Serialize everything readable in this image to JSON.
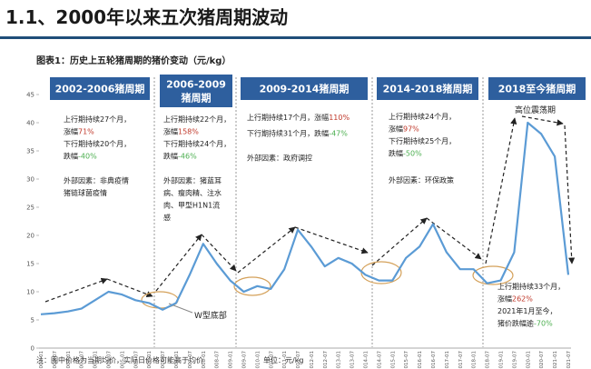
{
  "title": "1.1、2000年以来五次猪周期波动",
  "figure_caption": "图表1：历史上五轮猪周期的猪价变动（元/kg）",
  "chart_data": {
    "type": "line",
    "color": "#5b9bd5",
    "categories": [
      "2002-01",
      "2002-07",
      "2003-01",
      "2003-07",
      "2004-01",
      "2004-07",
      "2005-01",
      "2005-07",
      "2006-01",
      "2006-07",
      "2007-01",
      "2007-07",
      "2008-01",
      "2008-07",
      "2009-01",
      "2009-07",
      "2010-01",
      "2010-07",
      "2011-01",
      "2011-07",
      "2012-01",
      "2012-07",
      "2013-01",
      "2013-07",
      "2014-01",
      "2014-07",
      "2015-01",
      "2015-07",
      "2016-01",
      "2016-07",
      "2017-01",
      "2017-07",
      "2018-01",
      "2018-07",
      "2019-01",
      "2019-07",
      "2020-01",
      "2020-07",
      "2021-01",
      "2021-07"
    ],
    "values": [
      6,
      6.2,
      6.5,
      7,
      8.5,
      10,
      9.5,
      8.5,
      8,
      6.8,
      8,
      13,
      18.5,
      15,
      12,
      10,
      11,
      10.5,
      14,
      21,
      18,
      14.5,
      16,
      15,
      13,
      12,
      12,
      16,
      18,
      22,
      17,
      14,
      14,
      11.5,
      12,
      17,
      40,
      38,
      34,
      13
    ],
    "ylim": [
      0,
      45
    ],
    "yticks": [
      0,
      5,
      10,
      15,
      20,
      25,
      30,
      35,
      40,
      45
    ]
  },
  "cycles": [
    {
      "header": [
        "2002-2006猪周期"
      ],
      "notes": [
        [
          {
            "text": "上行期持续27个月，"
          }
        ],
        [
          {
            "text": "涨幅"
          },
          {
            "text": "71%",
            "color": "#c0392b"
          }
        ],
        [
          {
            "text": "下行期持续20个月，"
          }
        ],
        [
          {
            "text": "跌幅"
          },
          {
            "text": "-40%",
            "color": "#4caf50"
          }
        ],
        [
          {
            "text": "外部因素：非典疫情"
          }
        ],
        [
          {
            "text": "猪链球菌疫情"
          }
        ]
      ]
    },
    {
      "header": [
        "2006-2009",
        "猪周期"
      ],
      "notes": [
        [
          {
            "text": "上行期持续22个月，"
          }
        ],
        [
          {
            "text": "涨幅"
          },
          {
            "text": "158%",
            "color": "#c0392b"
          }
        ],
        [
          {
            "text": "下行期持续24个月，"
          }
        ],
        [
          {
            "text": "跌幅"
          },
          {
            "text": "-46%",
            "color": "#4caf50"
          }
        ],
        [
          {
            "text": "外部因素：猪蓝耳"
          }
        ],
        [
          {
            "text": "病、瘦肉精、注水"
          }
        ],
        [
          {
            "text": "肉、甲型H1N1流"
          }
        ],
        [
          {
            "text": "感"
          }
        ]
      ]
    },
    {
      "header": [
        "2009-2014猪周期"
      ],
      "notes": [
        [
          {
            "text": "上行期持续17个月，涨幅"
          },
          {
            "text": "110%",
            "color": "#c0392b"
          }
        ],
        [
          {
            "text": "下行期持续31个月，跌幅"
          },
          {
            "text": "-47%",
            "color": "#4caf50"
          }
        ],
        [
          {
            "text": "外部因素：政府调控"
          }
        ]
      ]
    },
    {
      "header": [
        "2014-2018猪周期"
      ],
      "notes": [
        [
          {
            "text": "上行期持续24个月，"
          }
        ],
        [
          {
            "text": "涨幅"
          },
          {
            "text": "97%",
            "color": "#c0392b"
          }
        ],
        [
          {
            "text": "下行期持续25个月，"
          }
        ],
        [
          {
            "text": "跌幅"
          },
          {
            "text": "-50%",
            "color": "#4caf50"
          }
        ],
        [
          {
            "text": "外部因素：环保政策"
          }
        ]
      ]
    },
    {
      "header": [
        "2018至今猪周期"
      ],
      "notes": [
        [
          {
            "text": "上行期持续33个月，"
          }
        ],
        [
          {
            "text": "涨幅"
          },
          {
            "text": "262%",
            "color": "#c0392b"
          }
        ],
        [
          {
            "text": "2021年1月至今，"
          }
        ],
        [
          {
            "text": "猪价跌幅逾"
          },
          {
            "text": "-70%",
            "color": "#4caf50"
          }
        ]
      ]
    }
  ],
  "annotations": {
    "w_bottom": "W型底部",
    "high_volatility": "高位震荡期"
  },
  "footnote": "注：图中价格为当期均价，实际日价格可能高于均价",
  "unit": "单位：元/kg"
}
